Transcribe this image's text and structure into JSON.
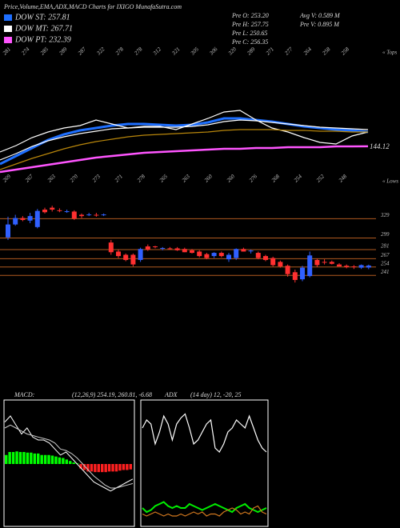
{
  "chart_data": [
    {
      "type": "line",
      "title": "Price,Volume,EMA,ADX,MACD Charts for IXIGO MunafaSutra.com",
      "annotations": [
        "Pre O: 253.20",
        "Pre H: 257.75",
        "Pre L: 250.65",
        "Pre C: 256.35",
        "Avg V: 0.589 M",
        "Pre V: 0.895 M"
      ],
      "top_labels": [
        "281",
        "274",
        "285",
        "289",
        "287",
        "322",
        "278",
        "278",
        "312",
        "321",
        "305",
        "306",
        "320",
        "289",
        "271",
        "277",
        "264",
        "258",
        "258"
      ],
      "low_labels": [
        "269",
        "267",
        "263",
        "270",
        "273",
        "271",
        "278",
        "265",
        "263",
        "260",
        "260",
        "276",
        "268",
        "254",
        "252",
        "248"
      ],
      "tops_label": "« Tops",
      "lows_label": "« Lows",
      "ylim": [
        80,
        380
      ],
      "series": [
        {
          "name": "DOW ST: 257.81",
          "color": "#1e6fff",
          "values": [
            100,
            120,
            140,
            160,
            174,
            184,
            190,
            196,
            200,
            200,
            198,
            196,
            198,
            204,
            214,
            214,
            210,
            206,
            200,
            194,
            190,
            186,
            184,
            180
          ]
        },
        {
          "name": "DOW MT: 267.71",
          "color": "#ffffff",
          "values": [
            110,
            126,
            144,
            158,
            168,
            176,
            182,
            188,
            190,
            192,
            192,
            192,
            194,
            198,
            206,
            210,
            208,
            204,
            200,
            196,
            192,
            190,
            188,
            186
          ]
        },
        {
          "color": "#ffffff",
          "values": [
            130,
            146,
            166,
            180,
            190,
            196,
            210,
            200,
            190,
            194,
            194,
            186,
            200,
            214,
            230,
            234,
            210,
            190,
            180,
            166,
            154,
            150,
            170,
            180
          ]
        },
        {
          "color": "#b8860b",
          "values": [
            86,
            100,
            114,
            126,
            138,
            148,
            156,
            162,
            168,
            172,
            174,
            176,
            178,
            180,
            184,
            186,
            186,
            186,
            184,
            184,
            182,
            182,
            180,
            180
          ]
        },
        {
          "name": "DOW PT: 232.39",
          "color": "#ff55ff",
          "values": [
            80,
            86,
            92,
            98,
            104,
            110,
            116,
            120,
            124,
            128,
            130,
            132,
            134,
            136,
            138,
            138,
            140,
            140,
            142,
            142,
            142,
            144,
            144,
            144.12
          ]
        }
      ]
    },
    {
      "type": "candlestick",
      "ylim": [
        224,
        348
      ],
      "yticks": [
        329,
        299,
        281,
        267,
        254,
        241
      ],
      "up_color": "#3060ff",
      "down_color": "#ff3030",
      "grid_color": "#b05a20",
      "open": [
        300,
        320,
        330,
        326,
        316,
        343,
        346,
        342,
        340,
        340,
        335,
        335,
        335,
        335,
        292,
        278,
        273,
        273,
        265,
        286,
        286,
        283,
        283,
        283,
        282,
        280,
        278,
        274,
        271,
        276,
        266,
        268,
        282,
        279,
        276,
        271,
        268,
        262,
        256,
        246,
        235,
        240,
        265,
        262,
        262,
        258,
        256,
        255,
        253,
        253.2
      ],
      "high": [
        332,
        335,
        333,
        338,
        344,
        346,
        349,
        345,
        343,
        342,
        337,
        338,
        338,
        337,
        296,
        281,
        275,
        275,
        284,
        289,
        287,
        285,
        285,
        285,
        284,
        282,
        280,
        276,
        277,
        278,
        276,
        283,
        284,
        281,
        278,
        273,
        270,
        264,
        258,
        250,
        256,
        278,
        267,
        266,
        264,
        260,
        258,
        257,
        258,
        257.75
      ],
      "low": [
        296,
        318,
        325,
        322,
        314,
        337,
        340,
        339,
        338,
        327,
        330,
        333,
        332,
        333,
        273,
        268,
        263,
        255,
        262,
        279,
        283,
        280,
        281,
        279,
        277,
        275,
        269,
        266,
        268,
        269,
        262,
        265,
        278,
        275,
        266,
        263,
        255,
        253,
        239,
        230,
        232,
        238,
        254,
        258,
        258,
        255,
        252,
        251,
        251,
        250.65
      ],
      "close": [
        320,
        330,
        327,
        333,
        341,
        339,
        343,
        341,
        340.5,
        329,
        333,
        335.5,
        334.5,
        335.5,
        277,
        271,
        265,
        258,
        282,
        281,
        285.5,
        283.5,
        282.5,
        280,
        277,
        276,
        271,
        268,
        276,
        271,
        273,
        282,
        278,
        279.5,
        268,
        265,
        257,
        255,
        243,
        234,
        253,
        272,
        257,
        261,
        259,
        255,
        254,
        254.5,
        257,
        256.35
      ]
    },
    {
      "type": "macd",
      "title": "MACD:",
      "subtitle": "(12,26,9) 254.19, 260.81, -6.68",
      "ylim": [
        -20,
        20
      ],
      "pos_color": "#00ff00",
      "neg_color": "#ff2020",
      "histogram": [
        3,
        4,
        4,
        4.2,
        4,
        4,
        3.8,
        3.8,
        3.5,
        3.5,
        3,
        3,
        3,
        2.8,
        2.5,
        2.2,
        2,
        1.5,
        1,
        0.5,
        0.2,
        -1.5,
        -2,
        -2.5,
        -2.5,
        -2.7,
        -2.7,
        -2.7,
        -2.7,
        -2.5,
        -2.5,
        -2.5,
        -2.2,
        -2,
        -2,
        -1.8
      ],
      "series": [
        {
          "color": "#ffffff",
          "values": [
            14,
            16,
            13,
            10,
            12,
            9,
            8,
            8,
            7,
            5,
            3,
            4,
            2,
            0,
            -2,
            -4,
            -6,
            -7,
            -8,
            -9,
            -8,
            -7,
            -6,
            -5
          ]
        },
        {
          "color": "#cccccc",
          "values": [
            12,
            13,
            12,
            11,
            10,
            9.5,
            9,
            8.5,
            8,
            7,
            5,
            4.5,
            3.5,
            2,
            0,
            -2,
            -4,
            -5.5,
            -7,
            -8,
            -8,
            -7.5,
            -7,
            -6.5
          ]
        }
      ]
    },
    {
      "type": "adx",
      "title": "ADX",
      "subtitle": "(14 day) 12, -20, 25",
      "ylim": [
        0,
        60
      ],
      "series": [
        {
          "color": "#ffffff",
          "values": [
            48,
            52,
            50,
            40,
            46,
            54,
            50,
            42,
            50,
            53,
            55,
            48,
            40,
            42,
            46,
            50,
            52,
            38,
            36,
            40,
            46,
            48,
            52,
            50,
            48,
            54,
            48,
            42,
            38,
            36
          ]
        },
        {
          "color": "#00ee00",
          "values": [
            8,
            6,
            7,
            9,
            10,
            11,
            9,
            8,
            9,
            8,
            8,
            10,
            9,
            8,
            7,
            8,
            9,
            10,
            9,
            8,
            7,
            6,
            8,
            9,
            10,
            8,
            7,
            6,
            7,
            8
          ]
        },
        {
          "color": "#d2781e",
          "values": [
            5,
            4,
            5,
            6,
            5,
            4,
            5,
            4,
            4,
            5,
            4,
            5,
            6,
            5,
            6,
            4,
            5,
            5,
            4,
            6,
            7,
            8,
            7,
            5,
            6,
            5,
            8,
            9,
            6,
            5
          ]
        }
      ]
    }
  ]
}
